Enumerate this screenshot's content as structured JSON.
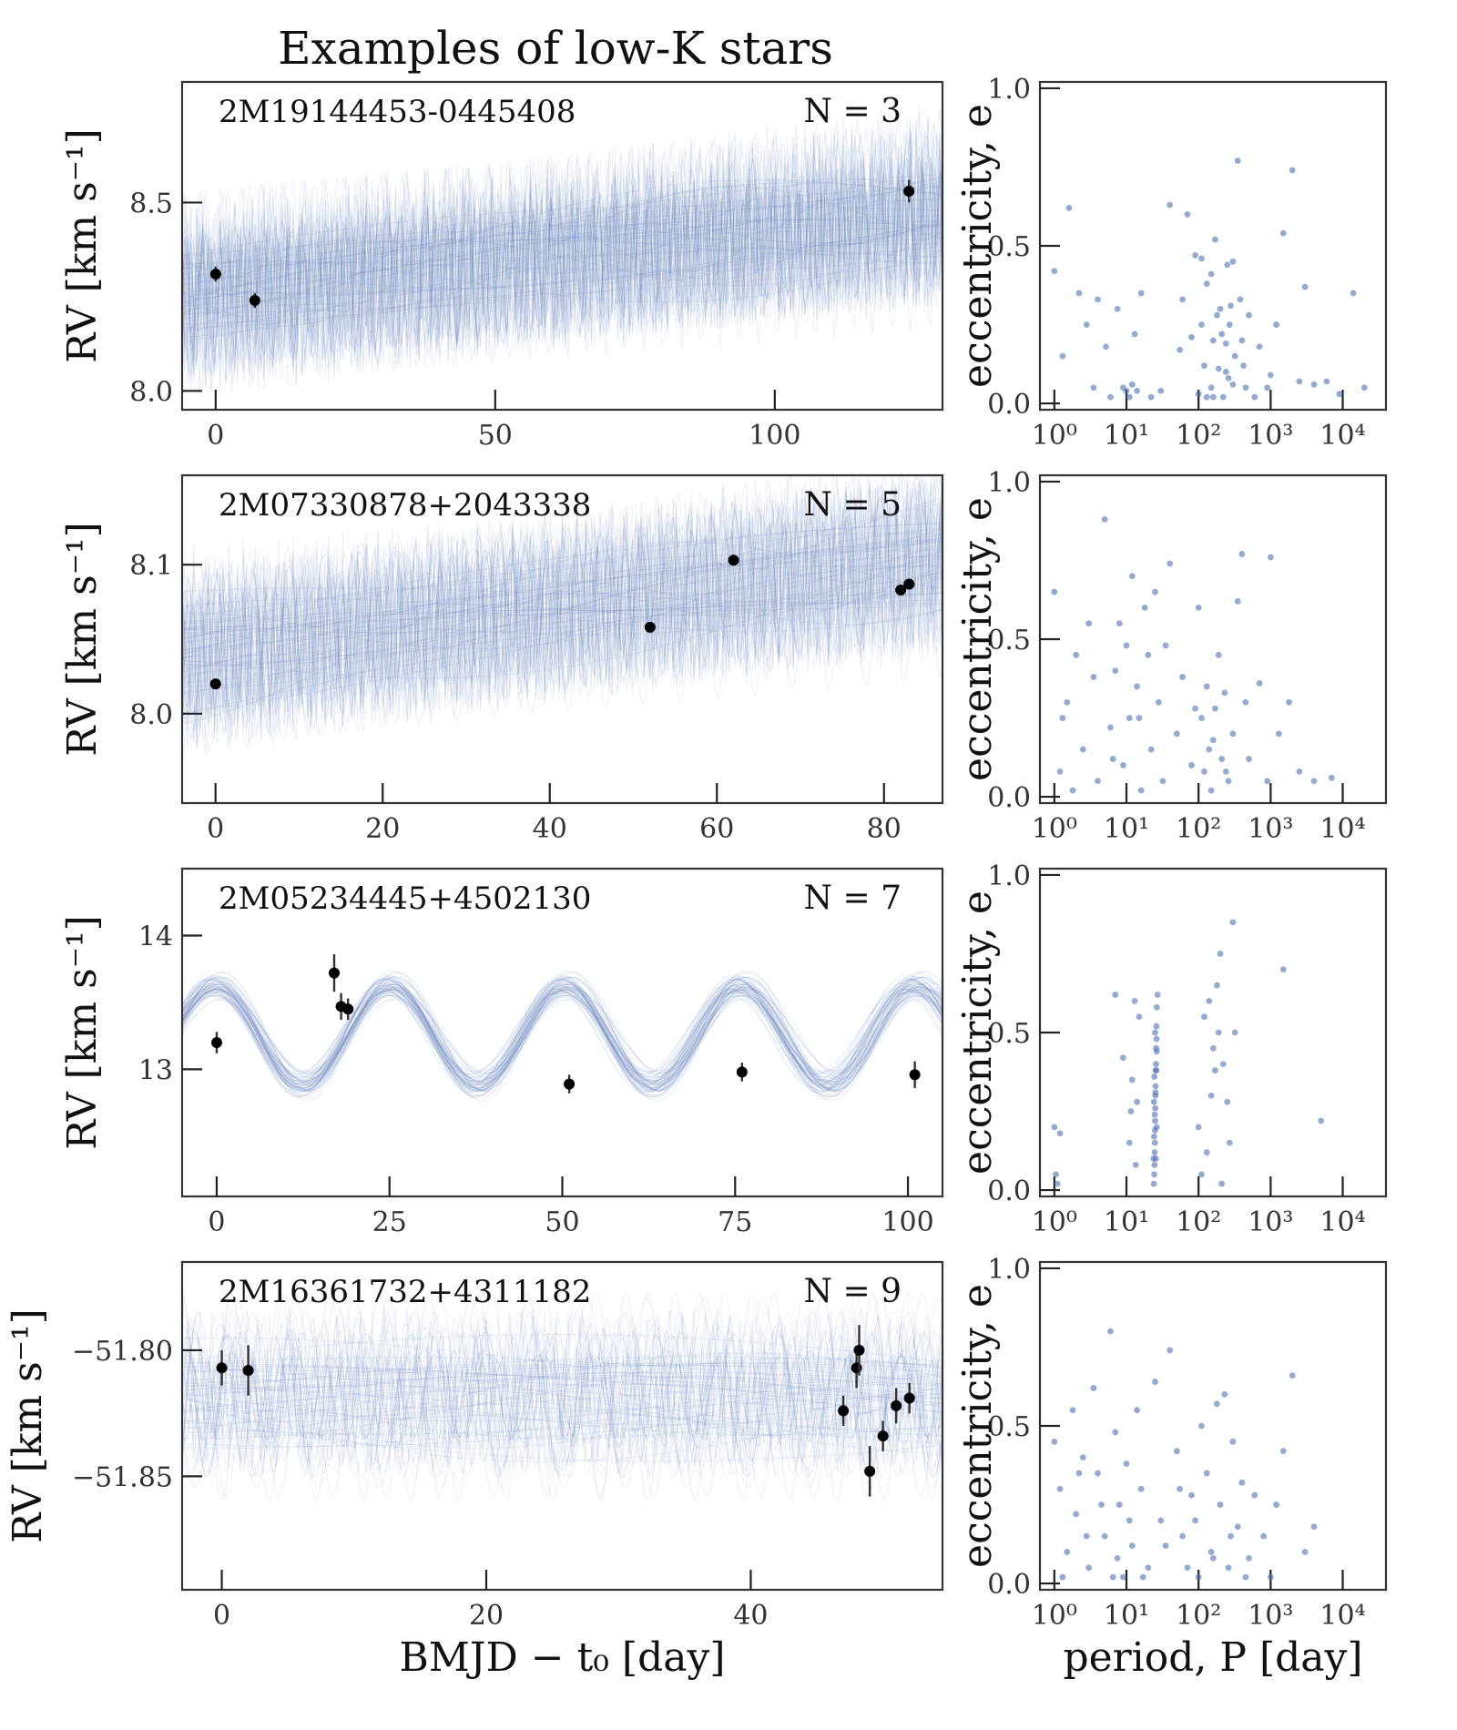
{
  "title": "Examples of low-K stars",
  "colors": {
    "samples": "#4c72b0",
    "data_points": "#000000",
    "axes": "#333333"
  },
  "shared_labels": {
    "rv_ylabel": "RV [km s⁻¹]",
    "rv_xlabel": "BMJD − t₀ [day]",
    "ecc_ylabel": "eccentricity, e",
    "ecc_xlabel": "period, P [day]"
  },
  "chart_data": [
    {
      "type": "line",
      "panel": "rv",
      "star": "2M19144453-0445408",
      "n_label": "N = 3",
      "xlabel": "BMJD − t₀ [day]",
      "ylabel": "RV [km s⁻¹]",
      "xlim": [
        -6,
        130
      ],
      "ylim": [
        7.95,
        8.82
      ],
      "xticks": [
        0,
        50,
        100
      ],
      "yticks": [
        8.0,
        8.5
      ],
      "ytick_labels": [
        "8.0",
        "8.5"
      ],
      "points": [
        {
          "t": 0,
          "rv": 8.31,
          "err": 0.02
        },
        {
          "t": 7,
          "rv": 8.24,
          "err": 0.02
        },
        {
          "t": 124,
          "rv": 8.53,
          "err": 0.03
        }
      ]
    },
    {
      "type": "scatter",
      "panel": "eccentricity",
      "star": "2M19144453-0445408",
      "xlabel": "period, P [day]",
      "ylabel": "eccentricity, e",
      "xscale": "log",
      "xlim_log10": [
        -0.2,
        4.6
      ],
      "ylim": [
        -0.02,
        1.02
      ],
      "xtick_labels": [
        "10⁰",
        "10¹",
        "10²",
        "10³",
        "10⁴"
      ],
      "yticks": [
        0.0,
        0.5,
        1.0
      ],
      "ytick_labels": [
        "0.0",
        "0.5",
        "1.0"
      ],
      "points": [
        [
          1.0,
          0.42
        ],
        [
          1.3,
          0.15
        ],
        [
          1.6,
          0.62
        ],
        [
          2.2,
          0.35
        ],
        [
          2.8,
          0.25
        ],
        [
          3.5,
          0.05
        ],
        [
          4.0,
          0.33
        ],
        [
          5.2,
          0.18
        ],
        [
          6.0,
          0.02
        ],
        [
          7.5,
          0.3
        ],
        [
          9.0,
          0.05
        ],
        [
          10.0,
          0.04
        ],
        [
          11.0,
          0.02
        ],
        [
          12.0,
          0.06
        ],
        [
          13.0,
          0.22
        ],
        [
          14.0,
          0.04
        ],
        [
          16.0,
          0.35
        ],
        [
          22.0,
          0.02
        ],
        [
          30.0,
          0.04
        ],
        [
          40.0,
          0.63
        ],
        [
          55.0,
          0.17
        ],
        [
          60.0,
          0.33
        ],
        [
          70.0,
          0.6
        ],
        [
          80.0,
          0.21
        ],
        [
          90.0,
          0.47
        ],
        [
          100.0,
          0.03
        ],
        [
          110.0,
          0.25
        ],
        [
          120.0,
          0.12
        ],
        [
          130.0,
          0.38
        ],
        [
          150.0,
          0.05
        ],
        [
          160.0,
          0.2
        ],
        [
          170.0,
          0.52
        ],
        [
          190.0,
          0.11
        ],
        [
          200.0,
          0.3
        ],
        [
          220.0,
          0.02
        ],
        [
          240.0,
          0.19
        ],
        [
          250.0,
          0.44
        ],
        [
          270.0,
          0.25
        ],
        [
          300.0,
          0.06
        ],
        [
          320.0,
          0.15
        ],
        [
          350.0,
          0.77
        ],
        [
          380.0,
          0.33
        ],
        [
          420.0,
          0.12
        ],
        [
          450.0,
          0.05
        ],
        [
          500.0,
          0.28
        ],
        [
          600.0,
          0.02
        ],
        [
          700.0,
          0.18
        ],
        [
          900.0,
          0.05
        ],
        [
          1000.0,
          0.09
        ],
        [
          1200.0,
          0.25
        ],
        [
          1500.0,
          0.54
        ],
        [
          2000.0,
          0.74
        ],
        [
          2500.0,
          0.07
        ],
        [
          3000.0,
          0.37
        ],
        [
          4000.0,
          0.06
        ],
        [
          6000.0,
          0.07
        ],
        [
          9000.0,
          0.03
        ],
        [
          14000.0,
          0.35
        ],
        [
          20000.0,
          0.05
        ],
        [
          150.0,
          0.41
        ],
        [
          180.0,
          0.28
        ],
        [
          260.0,
          0.08
        ],
        [
          130.0,
          0.02
        ],
        [
          210.0,
          0.22
        ],
        [
          400.0,
          0.2
        ],
        [
          110.0,
          0.46
        ],
        [
          300.0,
          0.45
        ],
        [
          160.0,
          0.02
        ],
        [
          240.0,
          0.1
        ],
        [
          280.0,
          0.31
        ]
      ]
    },
    {
      "type": "line",
      "panel": "rv",
      "star": "2M07330878+2043338",
      "n_label": "N = 5",
      "xlabel": "BMJD − t₀ [day]",
      "ylabel": "RV [km s⁻¹]",
      "xlim": [
        -4,
        87
      ],
      "ylim": [
        7.94,
        8.16
      ],
      "xticks": [
        0,
        20,
        40,
        60,
        80
      ],
      "yticks": [
        8.0,
        8.1
      ],
      "ytick_labels": [
        "8.0",
        "8.1"
      ],
      "points": [
        {
          "t": 0,
          "rv": 8.02,
          "err": 0.002
        },
        {
          "t": 52,
          "rv": 8.058,
          "err": 0.002
        },
        {
          "t": 62,
          "rv": 8.103,
          "err": 0.002
        },
        {
          "t": 82,
          "rv": 8.083,
          "err": 0.002
        },
        {
          "t": 83,
          "rv": 8.087,
          "err": 0.002
        }
      ]
    },
    {
      "type": "scatter",
      "panel": "eccentricity",
      "star": "2M07330878+2043338",
      "xlabel": "period, P [day]",
      "ylabel": "eccentricity, e",
      "xscale": "log",
      "xlim_log10": [
        -0.2,
        4.6
      ],
      "ylim": [
        -0.02,
        1.02
      ],
      "xtick_labels": [
        "10⁰",
        "10¹",
        "10²",
        "10³",
        "10⁴"
      ],
      "yticks": [
        0.0,
        0.5,
        1.0
      ],
      "ytick_labels": [
        "0.0",
        "0.5",
        "1.0"
      ],
      "points": [
        [
          1.0,
          0.65
        ],
        [
          1.2,
          0.08
        ],
        [
          1.5,
          0.3
        ],
        [
          2.0,
          0.45
        ],
        [
          2.5,
          0.15
        ],
        [
          3.0,
          0.55
        ],
        [
          4.0,
          0.05
        ],
        [
          5.0,
          0.88
        ],
        [
          6.0,
          0.22
        ],
        [
          7.0,
          0.4
        ],
        [
          8.0,
          0.55
        ],
        [
          9.0,
          0.1
        ],
        [
          10.0,
          0.48
        ],
        [
          11.0,
          0.25
        ],
        [
          12.0,
          0.7
        ],
        [
          14.0,
          0.35
        ],
        [
          16.0,
          0.02
        ],
        [
          18.0,
          0.6
        ],
        [
          20.0,
          0.45
        ],
        [
          22.0,
          0.15
        ],
        [
          25.0,
          0.65
        ],
        [
          28.0,
          0.3
        ],
        [
          32.0,
          0.05
        ],
        [
          40.0,
          0.74
        ],
        [
          50.0,
          0.2
        ],
        [
          60.0,
          0.38
        ],
        [
          80.0,
          0.1
        ],
        [
          100.0,
          0.6
        ],
        [
          110.0,
          0.25
        ],
        [
          120.0,
          0.08
        ],
        [
          130.0,
          0.35
        ],
        [
          140.0,
          0.15
        ],
        [
          150.0,
          0.02
        ],
        [
          170.0,
          0.28
        ],
        [
          190.0,
          0.45
        ],
        [
          210.0,
          0.12
        ],
        [
          230.0,
          0.33
        ],
        [
          260.0,
          0.05
        ],
        [
          300.0,
          0.2
        ],
        [
          350.0,
          0.62
        ],
        [
          400.0,
          0.77
        ],
        [
          450.0,
          0.3
        ],
        [
          500.0,
          0.12
        ],
        [
          700.0,
          0.36
        ],
        [
          900.0,
          0.05
        ],
        [
          1000.0,
          0.76
        ],
        [
          1300.0,
          0.2
        ],
        [
          1800.0,
          0.3
        ],
        [
          2500.0,
          0.08
        ],
        [
          4000.0,
          0.05
        ],
        [
          7000.0,
          0.06
        ],
        [
          1.3,
          0.25
        ],
        [
          1.8,
          0.02
        ],
        [
          3.5,
          0.38
        ],
        [
          6.5,
          0.12
        ],
        [
          15.0,
          0.25
        ],
        [
          35.0,
          0.48
        ],
        [
          90.0,
          0.28
        ],
        [
          160.0,
          0.18
        ],
        [
          240.0,
          0.08
        ]
      ]
    },
    {
      "type": "line",
      "panel": "rv",
      "star": "2M05234445+4502130",
      "n_label": "N = 7",
      "xlabel": "BMJD − t₀ [day]",
      "ylabel": "RV [km s⁻¹]",
      "xlim": [
        -5,
        105
      ],
      "ylim": [
        12.05,
        14.5
      ],
      "xticks": [
        0,
        25,
        50,
        75,
        100
      ],
      "yticks": [
        13,
        14
      ],
      "ytick_labels": [
        "13",
        "14"
      ],
      "points": [
        {
          "t": 0,
          "rv": 13.2,
          "err": 0.08
        },
        {
          "t": 17,
          "rv": 13.72,
          "err": 0.14
        },
        {
          "t": 18,
          "rv": 13.47,
          "err": 0.1
        },
        {
          "t": 19,
          "rv": 13.45,
          "err": 0.08
        },
        {
          "t": 51,
          "rv": 12.89,
          "err": 0.07
        },
        {
          "t": 76,
          "rv": 12.98,
          "err": 0.07
        },
        {
          "t": 101,
          "rv": 12.96,
          "err": 0.1
        }
      ]
    },
    {
      "type": "scatter",
      "panel": "eccentricity",
      "star": "2M05234445+4502130",
      "xlabel": "period, P [day]",
      "ylabel": "eccentricity, e",
      "xscale": "log",
      "xlim_log10": [
        -0.2,
        4.6
      ],
      "ylim": [
        -0.02,
        1.02
      ],
      "xtick_labels": [
        "10⁰",
        "10¹",
        "10²",
        "10³",
        "10⁴"
      ],
      "yticks": [
        0.0,
        0.5,
        1.0
      ],
      "ytick_labels": [
        "0.0",
        "0.5",
        "1.0"
      ],
      "points": [
        [
          1.0,
          0.2
        ],
        [
          1.05,
          0.05
        ],
        [
          1.1,
          0.02
        ],
        [
          1.2,
          0.18
        ],
        [
          7.0,
          0.62
        ],
        [
          9.0,
          0.42
        ],
        [
          11.0,
          0.15
        ],
        [
          12.0,
          0.35
        ],
        [
          13.0,
          0.6
        ],
        [
          13.5,
          0.08
        ],
        [
          14.0,
          0.28
        ],
        [
          15.0,
          0.55
        ],
        [
          24.0,
          0.02
        ],
        [
          24.5,
          0.08
        ],
        [
          24.8,
          0.15
        ],
        [
          25.0,
          0.22
        ],
        [
          25.2,
          0.3
        ],
        [
          25.5,
          0.38
        ],
        [
          25.8,
          0.45
        ],
        [
          26.0,
          0.52
        ],
        [
          24.3,
          0.05
        ],
        [
          24.6,
          0.12
        ],
        [
          24.9,
          0.19
        ],
        [
          25.1,
          0.26
        ],
        [
          25.4,
          0.33
        ],
        [
          25.7,
          0.4
        ],
        [
          26.1,
          0.48
        ],
        [
          26.4,
          0.58
        ],
        [
          27.0,
          0.62
        ],
        [
          23.8,
          0.1
        ],
        [
          24.2,
          0.17
        ],
        [
          24.7,
          0.24
        ],
        [
          25.3,
          0.31
        ],
        [
          25.9,
          0.38
        ],
        [
          26.3,
          0.44
        ],
        [
          24.1,
          0.28
        ],
        [
          25.6,
          0.1
        ],
        [
          26.2,
          0.2
        ],
        [
          24.4,
          0.36
        ],
        [
          25.0,
          0.5
        ],
        [
          100.0,
          0.2
        ],
        [
          110.0,
          0.05
        ],
        [
          120.0,
          0.55
        ],
        [
          140.0,
          0.6
        ],
        [
          150.0,
          0.3
        ],
        [
          160.0,
          0.45
        ],
        [
          180.0,
          0.65
        ],
        [
          200.0,
          0.75
        ],
        [
          220.0,
          0.4
        ],
        [
          250.0,
          0.28
        ],
        [
          270.0,
          0.15
        ],
        [
          300.0,
          0.85
        ],
        [
          320.0,
          0.5
        ],
        [
          1500.0,
          0.7
        ],
        [
          5000.0,
          0.22
        ],
        [
          130.0,
          0.12
        ],
        [
          170.0,
          0.38
        ],
        [
          190.0,
          0.5
        ],
        [
          210.0,
          0.02
        ],
        [
          11.5,
          0.25
        ]
      ]
    },
    {
      "type": "line",
      "panel": "rv",
      "star": "2M16361732+4311182",
      "n_label": "N = 9",
      "xlabel": "BMJD − t₀ [day]",
      "ylabel": "RV [km s⁻¹]",
      "xlim": [
        -3,
        54.5
      ],
      "ylim": [
        -51.895,
        -51.765
      ],
      "xticks": [
        0,
        20,
        40
      ],
      "yticks": [
        -51.8,
        -51.85
      ],
      "ytick_labels": [
        "−51.80",
        "−51.85"
      ],
      "points": [
        {
          "t": 0,
          "rv": -51.807,
          "err": 0.007
        },
        {
          "t": 2,
          "rv": -51.808,
          "err": 0.01
        },
        {
          "t": 47,
          "rv": -51.824,
          "err": 0.006
        },
        {
          "t": 48,
          "rv": -51.807,
          "err": 0.008
        },
        {
          "t": 48.2,
          "rv": -51.8,
          "err": 0.01
        },
        {
          "t": 49,
          "rv": -51.848,
          "err": 0.01
        },
        {
          "t": 50,
          "rv": -51.834,
          "err": 0.006
        },
        {
          "t": 51,
          "rv": -51.822,
          "err": 0.007
        },
        {
          "t": 52,
          "rv": -51.819,
          "err": 0.006
        }
      ]
    },
    {
      "type": "scatter",
      "panel": "eccentricity",
      "star": "2M16361732+4311182",
      "xlabel": "period, P [day]",
      "ylabel": "eccentricity, e",
      "xscale": "log",
      "xlim_log10": [
        -0.2,
        4.6
      ],
      "ylim": [
        -0.02,
        1.02
      ],
      "xtick_labels": [
        "10⁰",
        "10¹",
        "10²",
        "10³",
        "10⁴"
      ],
      "yticks": [
        0.0,
        0.5,
        1.0
      ],
      "ytick_labels": [
        "0.0",
        "0.5",
        "1.0"
      ],
      "points": [
        [
          1.0,
          0.45
        ],
        [
          1.2,
          0.3
        ],
        [
          1.5,
          0.1
        ],
        [
          1.8,
          0.55
        ],
        [
          2.0,
          0.22
        ],
        [
          2.5,
          0.4
        ],
        [
          3.0,
          0.05
        ],
        [
          3.5,
          0.62
        ],
        [
          4.0,
          0.35
        ],
        [
          5.0,
          0.15
        ],
        [
          6.0,
          0.8
        ],
        [
          7.0,
          0.48
        ],
        [
          8.0,
          0.25
        ],
        [
          9.0,
          0.02
        ],
        [
          10.0,
          0.38
        ],
        [
          12.0,
          0.12
        ],
        [
          14.0,
          0.55
        ],
        [
          16.0,
          0.3
        ],
        [
          20.0,
          0.05
        ],
        [
          25.0,
          0.64
        ],
        [
          30.0,
          0.2
        ],
        [
          40.0,
          0.74
        ],
        [
          50.0,
          0.42
        ],
        [
          60.0,
          0.15
        ],
        [
          80.0,
          0.28
        ],
        [
          100.0,
          0.02
        ],
        [
          110.0,
          0.5
        ],
        [
          130.0,
          0.35
        ],
        [
          150.0,
          0.1
        ],
        [
          180.0,
          0.57
        ],
        [
          200.0,
          0.25
        ],
        [
          230.0,
          0.6
        ],
        [
          260.0,
          0.05
        ],
        [
          300.0,
          0.45
        ],
        [
          350.0,
          0.18
        ],
        [
          400.0,
          0.32
        ],
        [
          500.0,
          0.08
        ],
        [
          600.0,
          0.28
        ],
        [
          800.0,
          0.15
        ],
        [
          1000.0,
          0.02
        ],
        [
          1200.0,
          0.25
        ],
        [
          1500.0,
          0.42
        ],
        [
          2000.0,
          0.66
        ],
        [
          3000.0,
          0.1
        ],
        [
          4000.0,
          0.18
        ],
        [
          1.3,
          0.02
        ],
        [
          2.8,
          0.15
        ],
        [
          4.5,
          0.25
        ],
        [
          7.5,
          0.08
        ],
        [
          11.0,
          0.2
        ],
        [
          17.0,
          0.02
        ],
        [
          35.0,
          0.12
        ],
        [
          70.0,
          0.05
        ],
        [
          90.0,
          0.2
        ],
        [
          160.0,
          0.08
        ],
        [
          280.0,
          0.15
        ],
        [
          450.0,
          0.02
        ],
        [
          2.2,
          0.35
        ],
        [
          6.5,
          0.02
        ],
        [
          55.0,
          0.3
        ]
      ]
    }
  ]
}
